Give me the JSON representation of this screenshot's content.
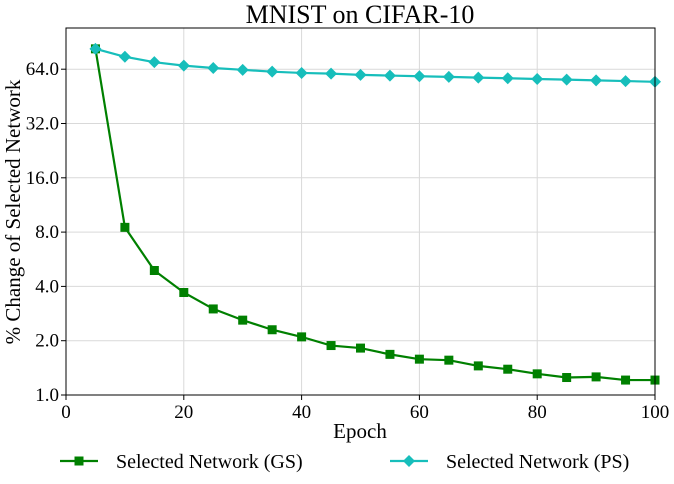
{
  "chart_data": {
    "type": "line",
    "title": "MNIST on CIFAR-10",
    "xlabel": "Epoch",
    "ylabel": "% Change of Selected Network",
    "xlim": [
      0,
      100
    ],
    "ylim": [
      1.0,
      90
    ],
    "y_scale": "log2",
    "x_ticks": [
      0,
      20,
      40,
      60,
      80,
      100
    ],
    "x_tick_labels": [
      "0",
      "20",
      "40",
      "60",
      "80",
      "100"
    ],
    "y_ticks": [
      1,
      2,
      4,
      8,
      16,
      32,
      64
    ],
    "y_tick_labels": [
      "1.0",
      "2.0",
      "4.0",
      "8.0",
      "16.0",
      "32.0",
      "64.0"
    ],
    "grid": true,
    "legend_position": "bottom",
    "x": [
      5,
      10,
      15,
      20,
      25,
      30,
      35,
      40,
      45,
      50,
      55,
      60,
      65,
      70,
      75,
      80,
      85,
      90,
      95,
      100
    ],
    "series": [
      {
        "name": "Selected Network (GS)",
        "color": "#008000",
        "marker": "square",
        "values": [
          83,
          8.5,
          4.9,
          3.7,
          3.0,
          2.6,
          2.3,
          2.1,
          1.88,
          1.82,
          1.68,
          1.58,
          1.56,
          1.45,
          1.39,
          1.31,
          1.25,
          1.26,
          1.21,
          1.21
        ]
      },
      {
        "name": "Selected Network (PS)",
        "color": "#17BEBB",
        "marker": "diamond",
        "values": [
          83,
          75,
          70,
          67,
          65,
          63.5,
          62,
          61,
          60.5,
          59.5,
          59,
          58.5,
          58,
          57.5,
          57,
          56.5,
          56,
          55.5,
          55,
          54.5
        ]
      }
    ]
  }
}
